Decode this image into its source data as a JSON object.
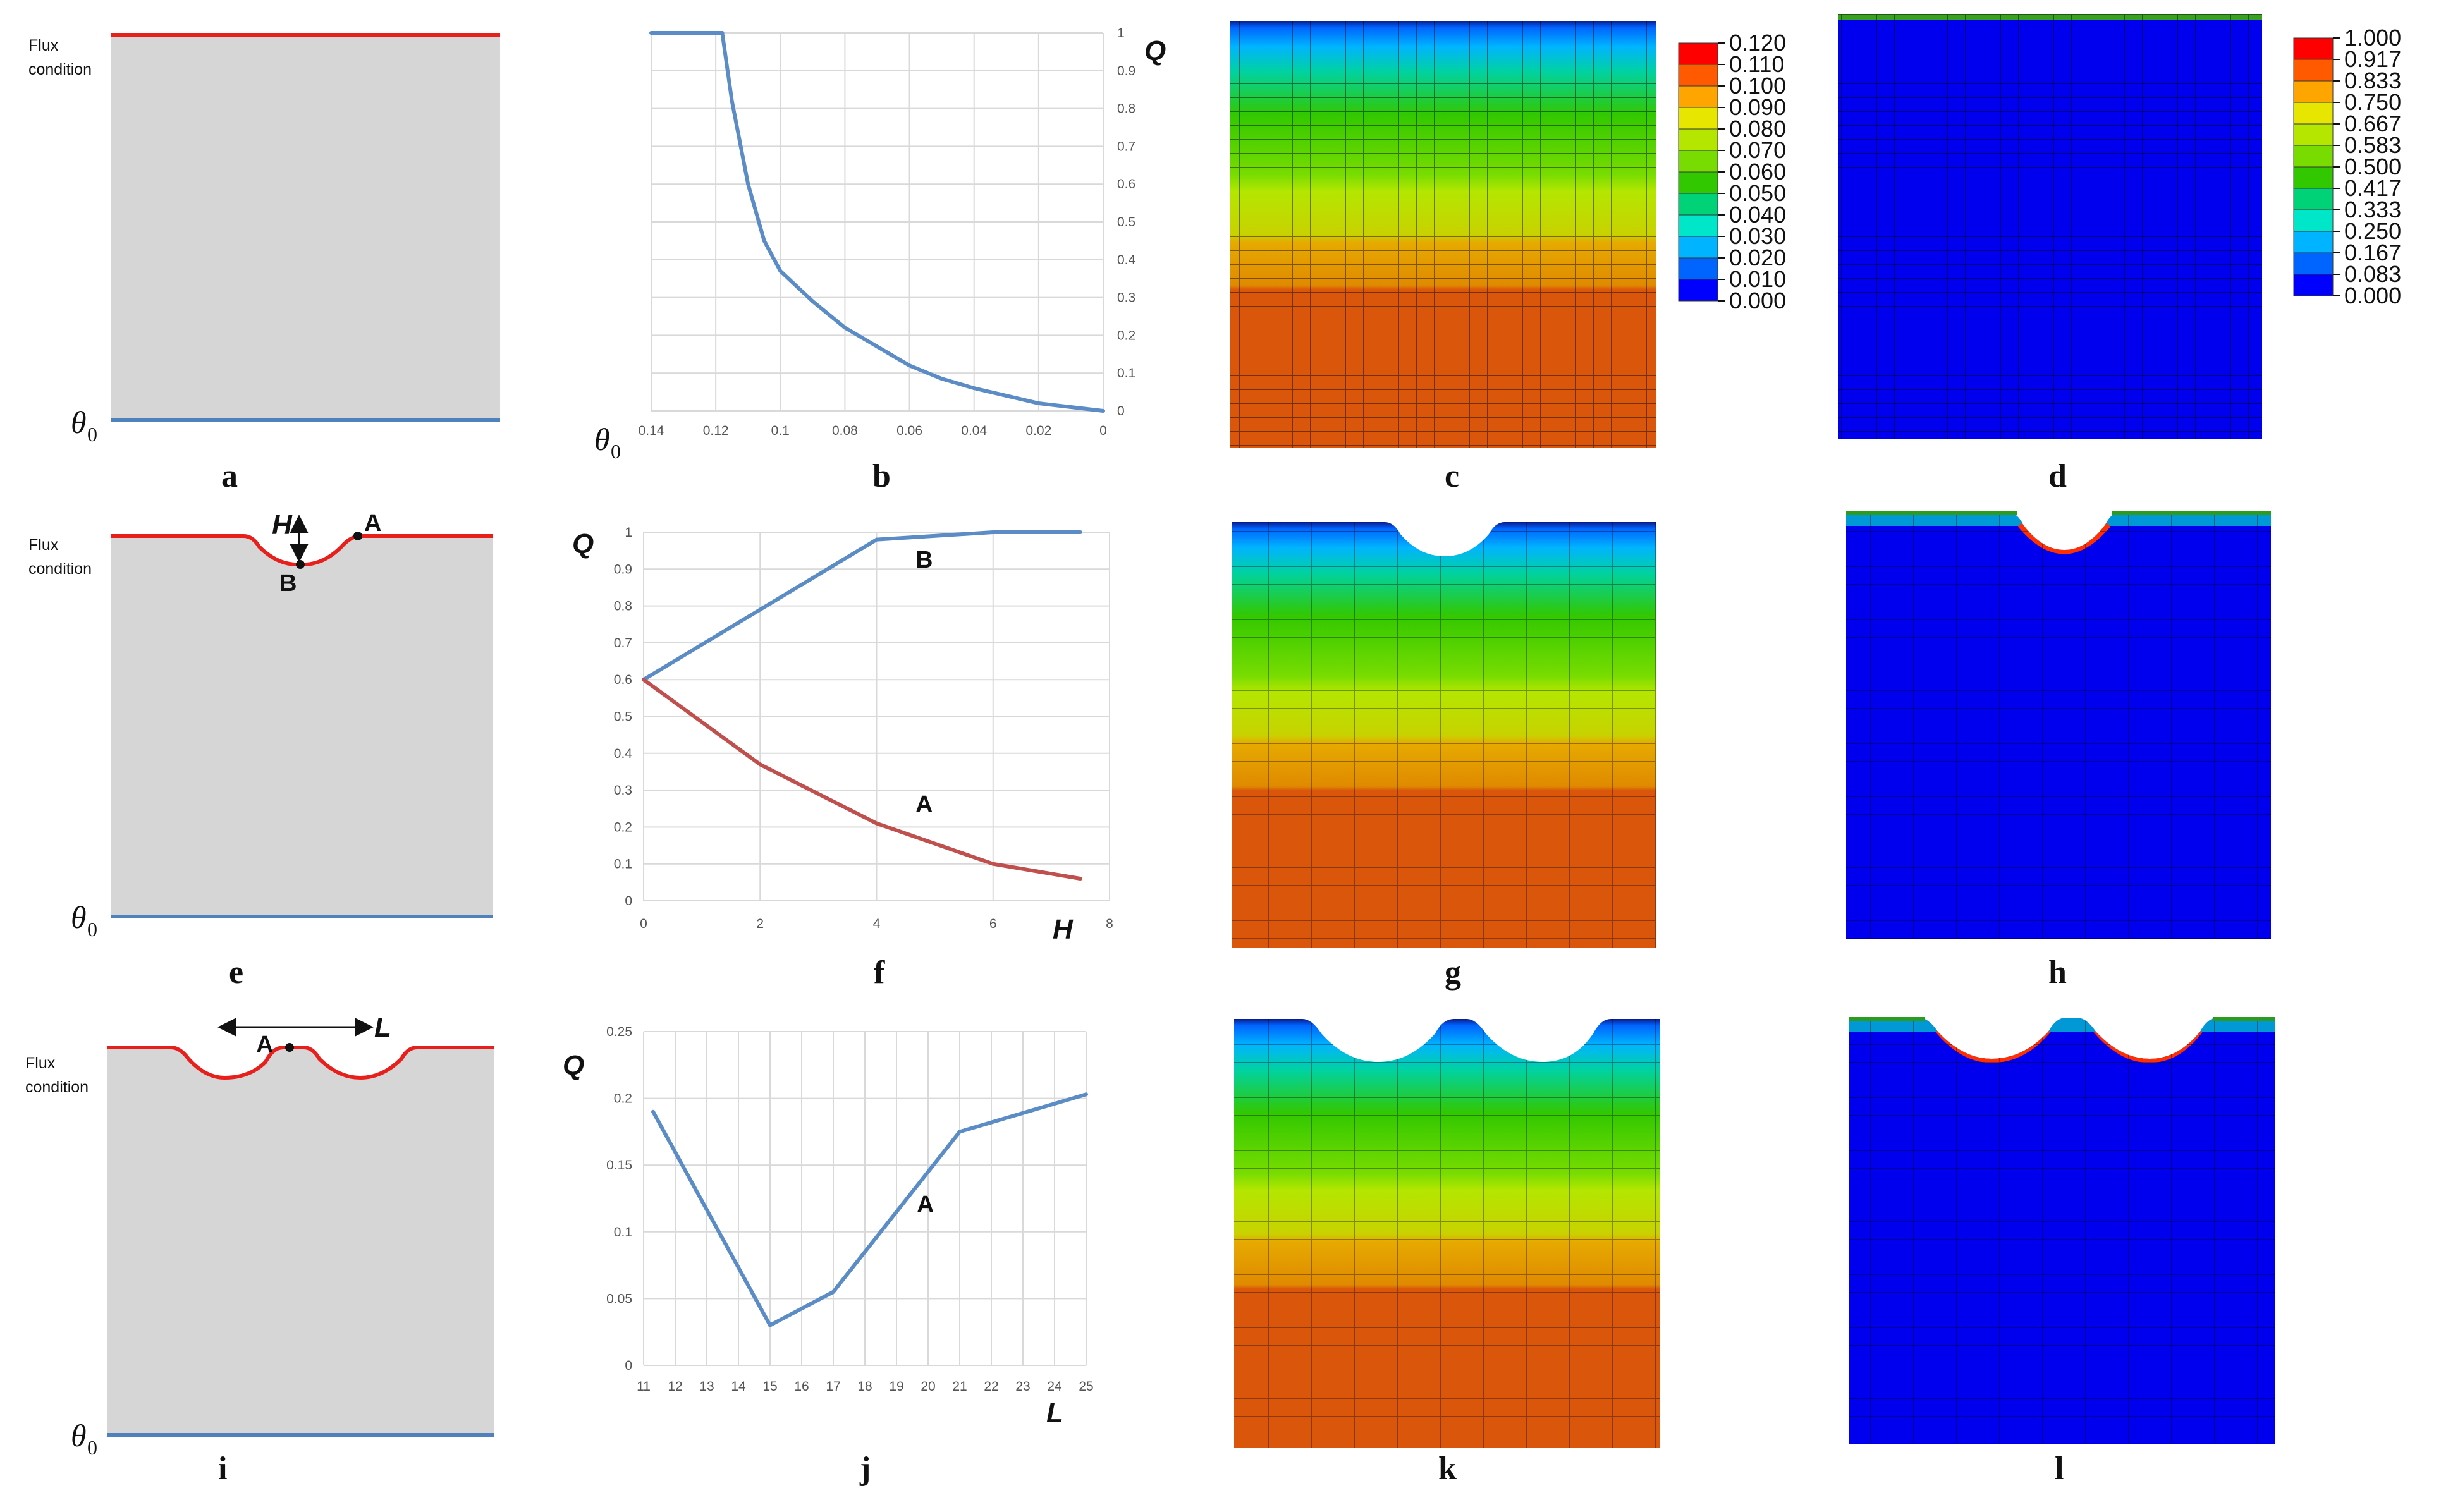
{
  "figure": {
    "panel_labels": [
      "a",
      "b",
      "c",
      "d",
      "e",
      "f",
      "g",
      "h",
      "i",
      "j",
      "k",
      "l"
    ],
    "flux_label_line1": "Flux",
    "flux_label_line2": "condition",
    "theta_symbol": "θ",
    "theta_subscript": "0",
    "colors": {
      "flux_boundary": "#e8201c",
      "base_boundary": "#4f81bd",
      "domain_fill": "#d6d6d6",
      "series_blue": "#5b8cc5",
      "series_red": "#c0504d",
      "grid": "#d9d9d9"
    }
  },
  "annotations": {
    "e_H": "H",
    "e_A": "A",
    "e_B": "B",
    "i_A": "A",
    "i_L": "L",
    "f_A": "A",
    "f_B": "B",
    "j_A": "A"
  },
  "legends": {
    "c": {
      "values": [
        "0.120",
        "0.110",
        "0.100",
        "0.090",
        "0.080",
        "0.070",
        "0.060",
        "0.050",
        "0.040",
        "0.030",
        "0.020",
        "0.010",
        "0.000"
      ],
      "colors": [
        "#ff0000",
        "#ff5a00",
        "#ffa500",
        "#e6e600",
        "#b4e600",
        "#78dc00",
        "#32c800",
        "#00d278",
        "#00e6c8",
        "#00b4ff",
        "#0064ff",
        "#0000ff"
      ]
    },
    "d": {
      "values": [
        "1.000",
        "0.917",
        "0.833",
        "0.750",
        "0.667",
        "0.583",
        "0.500",
        "0.417",
        "0.333",
        "0.250",
        "0.167",
        "0.083",
        "0.000"
      ],
      "colors": [
        "#ff0000",
        "#ff5a00",
        "#ffa500",
        "#e6e600",
        "#b4e600",
        "#78dc00",
        "#32c800",
        "#00d278",
        "#00e6c8",
        "#00b4ff",
        "#0064ff",
        "#0000ff"
      ]
    }
  },
  "chart_data": [
    {
      "id": "b",
      "type": "line",
      "xlabel": "θ0",
      "ylabel": "Q",
      "xlim": [
        0.14,
        0
      ],
      "ylim": [
        0,
        1
      ],
      "x_ticks": [
        "0.14",
        "0.12",
        "0.1",
        "0.08",
        "0.06",
        "0.04",
        "0.02",
        "0"
      ],
      "y_ticks": [
        "0",
        "0.1",
        "0.2",
        "0.3",
        "0.4",
        "0.5",
        "0.6",
        "0.7",
        "0.8",
        "0.9",
        "1"
      ],
      "series": [
        {
          "name": "Q",
          "x": [
            0.14,
            0.13,
            0.12,
            0.118,
            0.115,
            0.11,
            0.105,
            0.1,
            0.09,
            0.08,
            0.07,
            0.06,
            0.05,
            0.04,
            0.03,
            0.02,
            0.01,
            0
          ],
          "y": [
            1.0,
            1.0,
            1.0,
            1.0,
            0.82,
            0.6,
            0.45,
            0.37,
            0.29,
            0.22,
            0.17,
            0.12,
            0.085,
            0.06,
            0.04,
            0.02,
            0.01,
            0.0
          ]
        }
      ]
    },
    {
      "id": "f",
      "type": "line",
      "xlabel": "H",
      "ylabel": "Q",
      "xlim": [
        0,
        8
      ],
      "ylim": [
        0,
        1
      ],
      "x_ticks": [
        "0",
        "2",
        "4",
        "6",
        "8"
      ],
      "y_ticks": [
        "0",
        "0.1",
        "0.2",
        "0.3",
        "0.4",
        "0.5",
        "0.6",
        "0.7",
        "0.8",
        "0.9",
        "1"
      ],
      "series": [
        {
          "name": "B",
          "x": [
            0,
            2,
            4,
            6,
            7.5
          ],
          "y": [
            0.6,
            0.79,
            0.98,
            1.0,
            1.0
          ]
        },
        {
          "name": "A",
          "x": [
            0,
            2,
            4,
            6,
            7.5
          ],
          "y": [
            0.6,
            0.37,
            0.21,
            0.1,
            0.06
          ]
        }
      ]
    },
    {
      "id": "j",
      "type": "line",
      "xlabel": "L",
      "ylabel": "Q",
      "xlim": [
        11,
        25
      ],
      "ylim": [
        0,
        0.25
      ],
      "x_ticks": [
        "11",
        "12",
        "13",
        "14",
        "15",
        "16",
        "17",
        "18",
        "19",
        "20",
        "21",
        "22",
        "23",
        "24",
        "25"
      ],
      "y_ticks": [
        "0",
        "0.05",
        "0.1",
        "0.15",
        "0.2",
        "0.25"
      ],
      "series": [
        {
          "name": "A",
          "x": [
            11.3,
            15,
            17,
            21,
            25
          ],
          "y": [
            0.19,
            0.03,
            0.055,
            0.175,
            0.203
          ]
        }
      ]
    }
  ]
}
